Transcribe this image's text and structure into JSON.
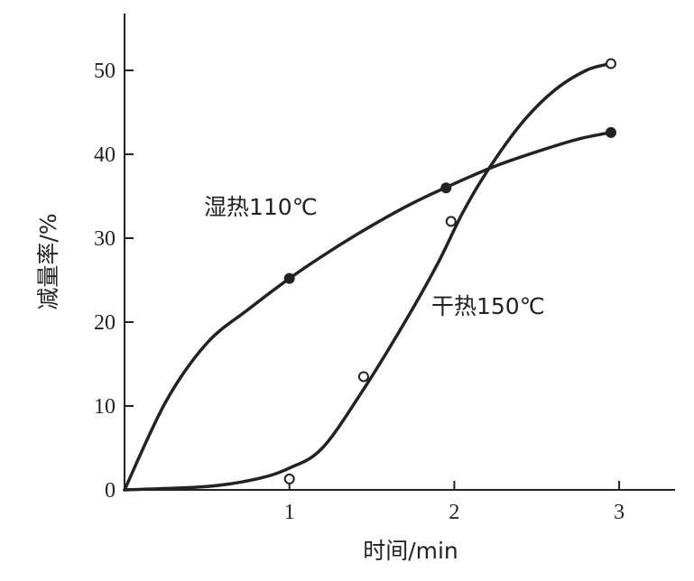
{
  "chart_data": {
    "type": "line",
    "title": "",
    "xlabel": "时间/min",
    "ylabel": "减量率/%",
    "xlim": [
      0,
      3.3
    ],
    "ylim": [
      0,
      57
    ],
    "x_ticks": [
      1,
      2,
      3
    ],
    "y_ticks": [
      0,
      10,
      20,
      30,
      40,
      50
    ],
    "grid": false,
    "legend": "none",
    "series": [
      {
        "name": "湿热110℃",
        "marker": "filled-circle",
        "points": [
          {
            "x": 1.0,
            "y": 25.2
          },
          {
            "x": 1.95,
            "y": 36.0
          },
          {
            "x": 2.95,
            "y": 42.6
          }
        ],
        "curve": [
          {
            "x": 0.0,
            "y": 0.0
          },
          {
            "x": 0.25,
            "y": 10.5
          },
          {
            "x": 0.5,
            "y": 17.5
          },
          {
            "x": 0.75,
            "y": 21.5
          },
          {
            "x": 1.0,
            "y": 25.2
          },
          {
            "x": 1.25,
            "y": 28.5
          },
          {
            "x": 1.5,
            "y": 31.5
          },
          {
            "x": 1.75,
            "y": 34.2
          },
          {
            "x": 2.0,
            "y": 36.5
          },
          {
            "x": 2.25,
            "y": 38.6
          },
          {
            "x": 2.5,
            "y": 40.3
          },
          {
            "x": 2.75,
            "y": 41.8
          },
          {
            "x": 2.95,
            "y": 42.6
          }
        ]
      },
      {
        "name": "干热150℃",
        "marker": "open-circle",
        "points": [
          {
            "x": 1.0,
            "y": 1.3
          },
          {
            "x": 1.45,
            "y": 13.5
          },
          {
            "x": 1.98,
            "y": 32.0
          },
          {
            "x": 2.95,
            "y": 50.8
          }
        ],
        "curve": [
          {
            "x": 0.0,
            "y": 0.0
          },
          {
            "x": 0.5,
            "y": 0.4
          },
          {
            "x": 0.8,
            "y": 1.3
          },
          {
            "x": 1.0,
            "y": 2.6
          },
          {
            "x": 1.2,
            "y": 5.0
          },
          {
            "x": 1.45,
            "y": 12.0
          },
          {
            "x": 1.7,
            "y": 20.0
          },
          {
            "x": 1.9,
            "y": 27.0
          },
          {
            "x": 2.05,
            "y": 33.0
          },
          {
            "x": 2.2,
            "y": 38.0
          },
          {
            "x": 2.4,
            "y": 43.5
          },
          {
            "x": 2.6,
            "y": 47.5
          },
          {
            "x": 2.8,
            "y": 50.0
          },
          {
            "x": 2.95,
            "y": 50.8
          }
        ]
      }
    ]
  },
  "labels": {
    "series1": "湿热110℃",
    "series2": "干热150℃"
  }
}
